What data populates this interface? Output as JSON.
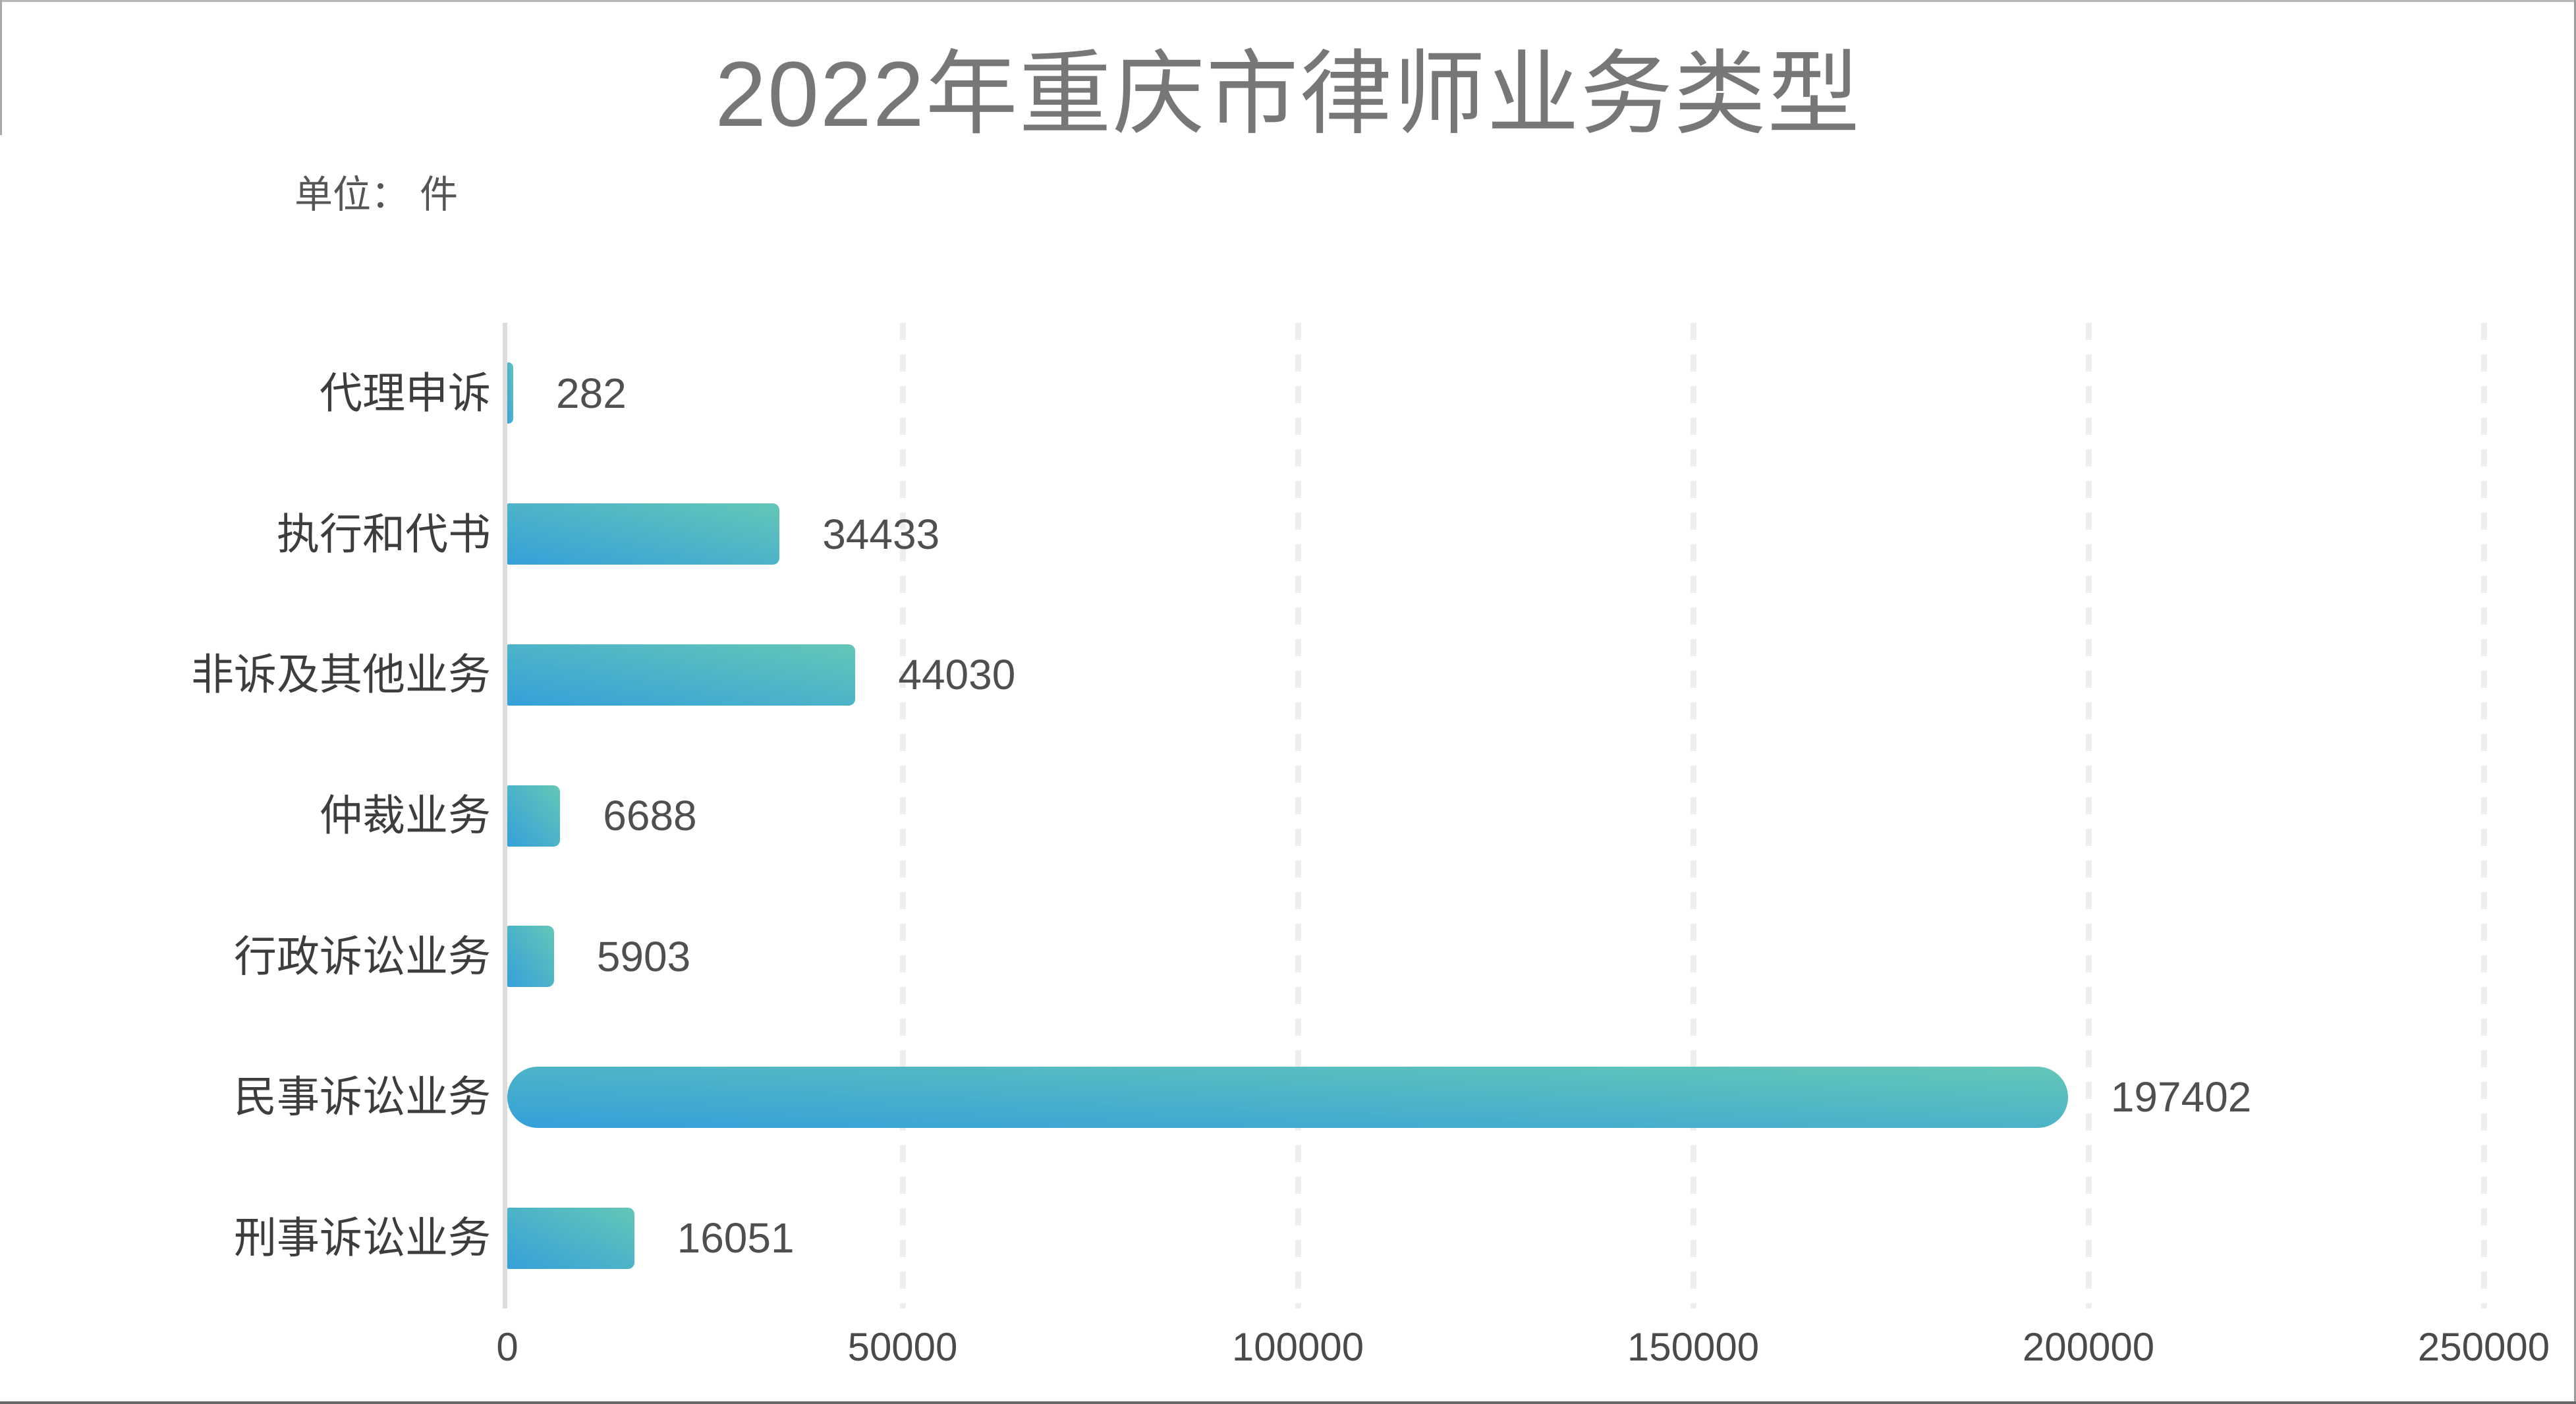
{
  "title": "2022年重庆市律师业务类型",
  "unit_label": "单位： 件",
  "colors": {
    "title_text": "#777777",
    "label_text": "#3d3d3d",
    "value_text": "#4f4f4f",
    "bar_gradient_start": "#35a0da",
    "bar_gradient_end": "#64c7b7",
    "axis_line": "#dcdcdc",
    "gridline": "#efeeec"
  },
  "chart_data": {
    "type": "bar",
    "orientation": "horizontal",
    "title": "2022年重庆市律师业务类型",
    "unit": "件",
    "categories": [
      "代理申诉",
      "执行和代书",
      "非诉及其他业务",
      "仲裁业务",
      "行政诉讼业务",
      "民事诉讼业务",
      "刑事诉讼业务"
    ],
    "values": [
      282,
      34433,
      44030,
      6688,
      5903,
      197402,
      16051
    ],
    "value_labels": [
      "282",
      "34433",
      "44030",
      "6688",
      "5903",
      "197402",
      "16051"
    ],
    "x_ticks": [
      "0",
      "50000",
      "100000",
      "150000",
      "200000",
      "250000"
    ],
    "x_tick_values": [
      0,
      50000,
      100000,
      150000,
      200000,
      250000
    ],
    "xlim": [
      0,
      250000
    ],
    "ylabel": "",
    "xlabel": "",
    "grid": "vertical-dashed",
    "legend": "none",
    "highlight_pill_category": "民事诉讼业务"
  }
}
